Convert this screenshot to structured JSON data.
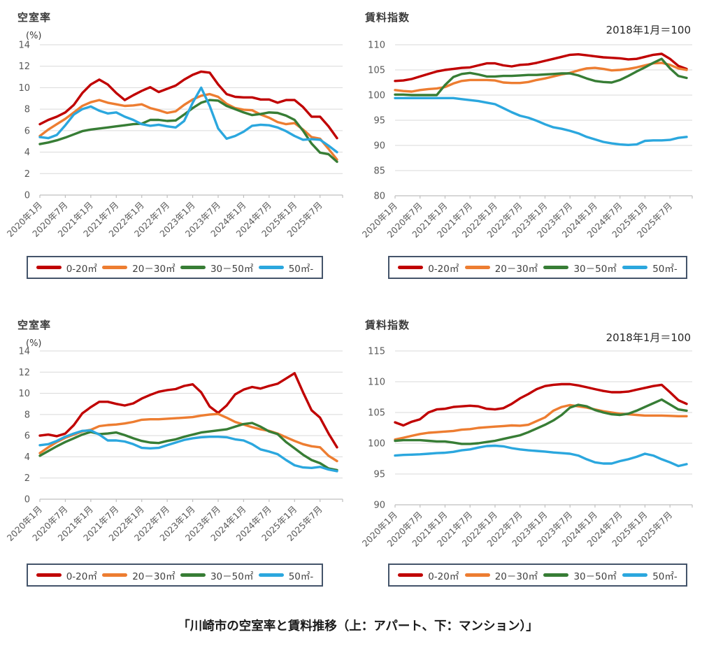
{
  "page": {
    "caption": "「川崎市の空室率と賃料推移（上：アパート、下：マンション）」"
  },
  "x_axis": {
    "tick_labels": [
      "2020年1月",
      "2020年7月",
      "2021年1月",
      "2021年7月",
      "2022年1月",
      "2022年7月",
      "2023年1月",
      "2023年7月",
      "2024年1月",
      "2024年7月",
      "2025年1月",
      "2025年7月"
    ],
    "tick_indices": [
      0,
      3,
      6,
      9,
      12,
      15,
      18,
      21,
      24,
      27,
      30,
      33
    ],
    "n_points": 36,
    "point_interval": "2 months"
  },
  "colors": {
    "s0_20": "#c00000",
    "s20_30": "#ed7d31",
    "s30_50": "#377d35",
    "s50_plus": "#2ba7de",
    "grid": "#d9d9d9",
    "axis": "#bfbfbf",
    "legend_border": "#44546a"
  },
  "chart_data": [
    {
      "id": "apartment-vacancy",
      "type": "line",
      "title": "空室率",
      "y_unit": "(%)",
      "subtitle": "",
      "ylim": [
        0,
        14
      ],
      "ystep": 2,
      "grid": true,
      "legend_position": "bottom",
      "series": [
        {
          "name": "0-20㎡",
          "color": "#c00000",
          "values": [
            6.6,
            7.0,
            7.3,
            7.7,
            8.4,
            9.5,
            10.3,
            10.75,
            10.3,
            9.5,
            8.85,
            9.3,
            9.7,
            10.05,
            9.6,
            9.9,
            10.2,
            10.75,
            11.2,
            11.5,
            11.4,
            10.3,
            9.4,
            9.15,
            9.1,
            9.1,
            8.9,
            8.9,
            8.6,
            8.85,
            8.85,
            8.2,
            7.3,
            7.3,
            6.4,
            5.3
          ]
        },
        {
          "name": "20－30㎡",
          "color": "#ed7d31",
          "values": [
            5.5,
            6.1,
            6.6,
            7.1,
            7.7,
            8.3,
            8.65,
            8.85,
            8.6,
            8.45,
            8.3,
            8.35,
            8.45,
            8.1,
            7.9,
            7.65,
            7.8,
            8.4,
            8.9,
            9.25,
            9.4,
            9.15,
            8.5,
            8.1,
            7.95,
            7.9,
            7.5,
            7.2,
            6.8,
            6.6,
            6.7,
            6.1,
            5.4,
            5.25,
            4.3,
            3.3
          ]
        },
        {
          "name": "30－50㎡",
          "color": "#377d35",
          "values": [
            4.75,
            4.9,
            5.1,
            5.35,
            5.65,
            5.95,
            6.1,
            6.2,
            6.3,
            6.4,
            6.5,
            6.6,
            6.65,
            7.0,
            7.0,
            6.9,
            6.95,
            7.5,
            8.1,
            8.6,
            8.85,
            8.8,
            8.3,
            8.0,
            7.7,
            7.45,
            7.55,
            7.7,
            7.65,
            7.4,
            7.0,
            6.0,
            4.8,
            3.95,
            3.8,
            3.1
          ]
        },
        {
          "name": "50㎡-",
          "color": "#2ba7de",
          "values": [
            5.4,
            5.3,
            5.6,
            6.5,
            7.5,
            8.0,
            8.25,
            7.85,
            7.6,
            7.7,
            7.3,
            7.0,
            6.6,
            6.45,
            6.55,
            6.4,
            6.3,
            6.9,
            8.6,
            10.0,
            8.3,
            6.2,
            5.25,
            5.5,
            5.9,
            6.45,
            6.55,
            6.5,
            6.3,
            5.95,
            5.5,
            5.15,
            5.2,
            5.15,
            4.6,
            4.0
          ]
        }
      ]
    },
    {
      "id": "apartment-rent-index",
      "type": "line",
      "title": "賃料指数",
      "y_unit": "",
      "subtitle": "2018年1月＝100",
      "ylim": [
        80,
        110
      ],
      "ystep": 5,
      "grid": true,
      "legend_position": "bottom",
      "series": [
        {
          "name": "0-20㎡",
          "color": "#c00000",
          "values": [
            102.8,
            102.9,
            103.2,
            103.7,
            104.2,
            104.7,
            105.0,
            105.2,
            105.4,
            105.5,
            105.9,
            106.3,
            106.3,
            105.9,
            105.7,
            106.0,
            106.1,
            106.4,
            106.8,
            107.2,
            107.6,
            108.0,
            108.1,
            107.9,
            107.7,
            107.5,
            107.4,
            107.3,
            107.1,
            107.2,
            107.6,
            108.0,
            108.2,
            107.2,
            105.8,
            105.2
          ]
        },
        {
          "name": "20－30㎡",
          "color": "#ed7d31",
          "values": [
            101.0,
            100.8,
            100.7,
            101.0,
            101.2,
            101.3,
            101.6,
            102.3,
            102.8,
            103.0,
            103.0,
            103.0,
            102.9,
            102.5,
            102.4,
            102.4,
            102.6,
            103.0,
            103.3,
            103.7,
            104.1,
            104.4,
            104.9,
            105.3,
            105.4,
            105.2,
            104.9,
            105.0,
            105.2,
            105.5,
            105.9,
            106.3,
            106.4,
            106.0,
            105.3,
            105.0
          ]
        },
        {
          "name": "30－50㎡",
          "color": "#377d35",
          "values": [
            100.1,
            100.1,
            100.0,
            100.0,
            100.0,
            100.0,
            102.0,
            103.6,
            104.2,
            104.4,
            104.1,
            103.7,
            103.7,
            103.8,
            103.8,
            103.9,
            104.0,
            104.0,
            104.1,
            104.2,
            104.3,
            104.3,
            103.9,
            103.3,
            102.8,
            102.6,
            102.5,
            103.0,
            103.8,
            104.7,
            105.5,
            106.4,
            107.2,
            105.3,
            103.8,
            103.4
          ]
        },
        {
          "name": "50㎡-",
          "color": "#2ba7de",
          "values": [
            99.4,
            99.4,
            99.4,
            99.4,
            99.4,
            99.4,
            99.4,
            99.4,
            99.2,
            99.0,
            98.8,
            98.5,
            98.2,
            97.4,
            96.6,
            95.9,
            95.5,
            94.9,
            94.2,
            93.6,
            93.3,
            92.9,
            92.4,
            91.7,
            91.2,
            90.7,
            90.4,
            90.2,
            90.1,
            90.2,
            90.9,
            91.0,
            91.0,
            91.1,
            91.5,
            91.7
          ]
        }
      ]
    },
    {
      "id": "mansion-vacancy",
      "type": "line",
      "title": "空室率",
      "y_unit": "(%)",
      "subtitle": "",
      "ylim": [
        0,
        14
      ],
      "ystep": 2,
      "grid": true,
      "legend_position": "bottom",
      "series": [
        {
          "name": "0-20㎡",
          "color": "#c00000",
          "values": [
            6.0,
            6.1,
            5.95,
            6.2,
            7.0,
            8.1,
            8.7,
            9.2,
            9.2,
            9.0,
            8.85,
            9.05,
            9.5,
            9.85,
            10.15,
            10.3,
            10.4,
            10.7,
            10.85,
            10.1,
            8.75,
            8.15,
            8.85,
            9.9,
            10.35,
            10.6,
            10.45,
            10.7,
            10.9,
            11.4,
            11.9,
            10.1,
            8.4,
            7.7,
            6.2,
            4.9
          ]
        },
        {
          "name": "20－30㎡",
          "color": "#ed7d31",
          "values": [
            4.35,
            4.9,
            5.4,
            5.8,
            6.1,
            6.4,
            6.55,
            6.9,
            7.0,
            7.05,
            7.15,
            7.3,
            7.5,
            7.55,
            7.55,
            7.6,
            7.65,
            7.7,
            7.75,
            7.9,
            8.0,
            8.05,
            7.7,
            7.3,
            7.05,
            6.8,
            6.6,
            6.45,
            6.2,
            5.85,
            5.5,
            5.2,
            5.0,
            4.9,
            4.1,
            3.6
          ]
        },
        {
          "name": "30－50㎡",
          "color": "#377d35",
          "values": [
            4.1,
            4.55,
            5.0,
            5.4,
            5.75,
            6.1,
            6.35,
            6.15,
            6.2,
            6.3,
            6.05,
            5.75,
            5.5,
            5.35,
            5.3,
            5.5,
            5.65,
            5.9,
            6.1,
            6.3,
            6.4,
            6.5,
            6.6,
            6.85,
            7.1,
            7.2,
            6.85,
            6.4,
            6.15,
            5.4,
            4.8,
            4.2,
            3.7,
            3.4,
            2.9,
            2.75
          ]
        },
        {
          "name": "50㎡-",
          "color": "#2ba7de",
          "values": [
            5.1,
            5.2,
            5.5,
            5.9,
            6.2,
            6.45,
            6.5,
            6.1,
            5.55,
            5.55,
            5.45,
            5.2,
            4.85,
            4.8,
            4.85,
            5.1,
            5.35,
            5.6,
            5.75,
            5.85,
            5.9,
            5.9,
            5.85,
            5.65,
            5.55,
            5.2,
            4.7,
            4.5,
            4.25,
            3.7,
            3.2,
            3.0,
            2.95,
            3.05,
            2.8,
            2.65
          ]
        }
      ]
    },
    {
      "id": "mansion-rent-index",
      "type": "line",
      "title": "賃料指数",
      "y_unit": "",
      "subtitle": "2018年1月＝100",
      "ylim": [
        90,
        115
      ],
      "ystep": 5,
      "grid": true,
      "legend_position": "bottom",
      "series": [
        {
          "name": "0-20㎡",
          "color": "#c00000",
          "values": [
            103.4,
            102.9,
            103.5,
            103.9,
            105.0,
            105.5,
            105.6,
            105.9,
            106.0,
            106.1,
            106.0,
            105.6,
            105.5,
            105.7,
            106.4,
            107.3,
            108.0,
            108.8,
            109.3,
            109.5,
            109.6,
            109.6,
            109.4,
            109.1,
            108.8,
            108.5,
            108.3,
            108.3,
            108.4,
            108.7,
            109.0,
            109.3,
            109.5,
            108.3,
            107.0,
            106.4
          ]
        },
        {
          "name": "20－30㎡",
          "color": "#ed7d31",
          "values": [
            100.6,
            100.9,
            101.2,
            101.5,
            101.7,
            101.8,
            101.9,
            102.0,
            102.2,
            102.3,
            102.5,
            102.6,
            102.7,
            102.8,
            102.9,
            102.85,
            103.0,
            103.6,
            104.2,
            105.3,
            105.9,
            106.2,
            106.0,
            105.8,
            105.5,
            105.2,
            105.0,
            104.8,
            104.7,
            104.6,
            104.5,
            104.5,
            104.5,
            104.45,
            104.4,
            104.4
          ]
        },
        {
          "name": "30－50㎡",
          "color": "#377d35",
          "values": [
            100.4,
            100.5,
            100.5,
            100.5,
            100.4,
            100.3,
            100.3,
            100.1,
            99.9,
            99.9,
            100.0,
            100.2,
            100.4,
            100.7,
            101.0,
            101.3,
            101.8,
            102.4,
            103.0,
            103.7,
            104.6,
            105.8,
            106.25,
            106.0,
            105.4,
            105.0,
            104.7,
            104.6,
            104.8,
            105.3,
            105.9,
            106.5,
            107.1,
            106.3,
            105.5,
            105.3
          ]
        },
        {
          "name": "50㎡-",
          "color": "#2ba7de",
          "values": [
            98.0,
            98.1,
            98.15,
            98.2,
            98.3,
            98.4,
            98.45,
            98.6,
            98.85,
            99.0,
            99.3,
            99.55,
            99.6,
            99.5,
            99.2,
            99.0,
            98.85,
            98.75,
            98.65,
            98.5,
            98.4,
            98.3,
            98.0,
            97.4,
            96.9,
            96.7,
            96.7,
            97.1,
            97.4,
            97.8,
            98.3,
            98.0,
            97.4,
            96.9,
            96.3,
            96.6
          ]
        }
      ]
    }
  ]
}
